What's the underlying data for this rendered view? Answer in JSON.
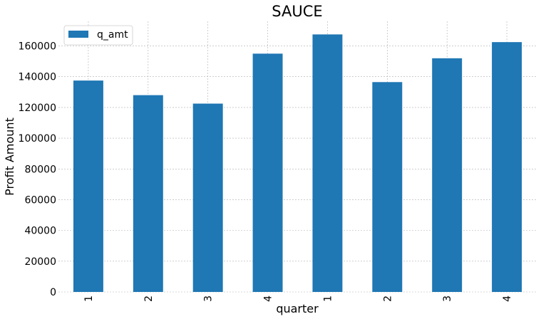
{
  "chart_data": {
    "type": "bar",
    "title": "SAUCE",
    "xlabel": "quarter",
    "ylabel": "Profit Amount",
    "categories": [
      "1",
      "2",
      "3",
      "4",
      "1",
      "2",
      "3",
      "4"
    ],
    "series": [
      {
        "name": "q_amt",
        "color": "#1f77b4",
        "values": [
          137500,
          128000,
          122500,
          155000,
          167500,
          136500,
          152000,
          162500
        ]
      }
    ],
    "ylim": [
      0,
      176000
    ],
    "yticks": [
      0,
      20000,
      40000,
      60000,
      80000,
      100000,
      120000,
      140000,
      160000
    ],
    "ytick_labels": [
      "0",
      "20000",
      "40000",
      "60000",
      "80000",
      "100000",
      "120000",
      "140000",
      "160000"
    ],
    "grid": true,
    "legend": "top-left"
  }
}
